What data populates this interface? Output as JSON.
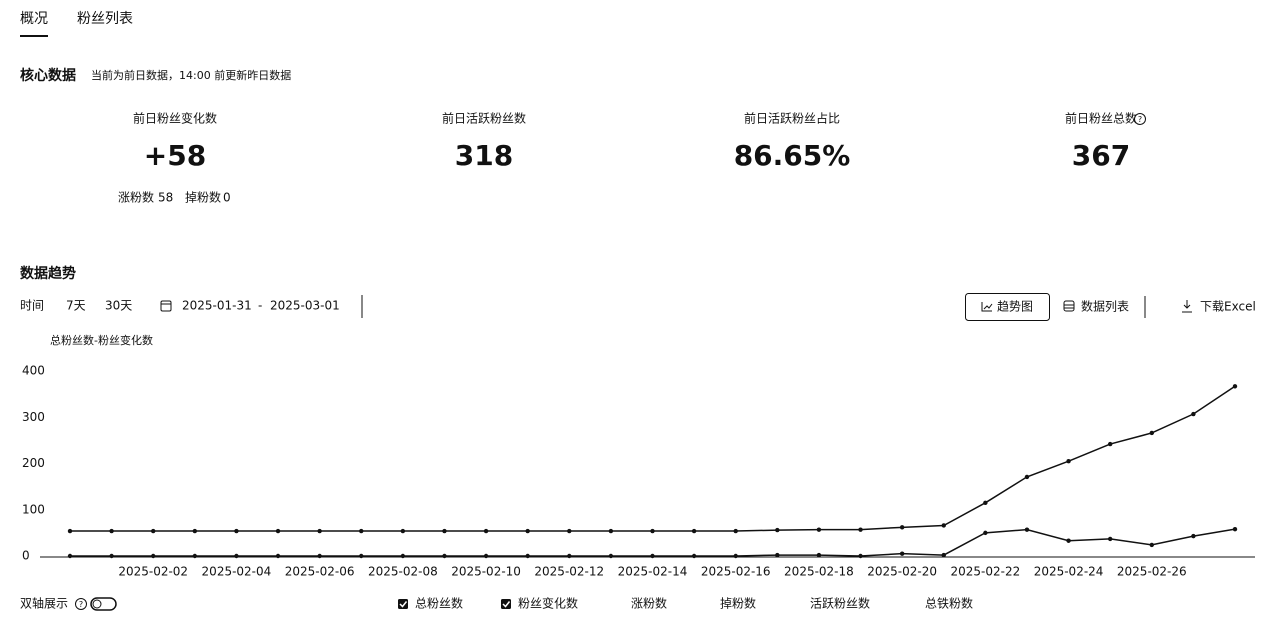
{
  "tabs": [
    "概况",
    "粉丝列表"
  ],
  "core": {
    "title": "核心数据",
    "note": "当前为前日数据，14:00 前更新昨日数据",
    "metrics": [
      {
        "label": "前日粉丝变化数",
        "value": {
          "value": 58,
          "label": "+58"
        }
      },
      {
        "label": "前日活跃粉丝数",
        "value": 318
      },
      {
        "label": "前日活跃粉丝占比",
        "value": {
          "value": 86.65,
          "label": "86.65%"
        }
      },
      {
        "label": "前日粉丝总数",
        "value": 367
      }
    ],
    "sub": [
      {
        "label": "涨粉数",
        "value": 58
      },
      {
        "label": "掉粉数",
        "value": 0
      }
    ]
  },
  "trend": {
    "title": "数据趋势",
    "time_label": "时间",
    "ranges": [
      "7天",
      "30天"
    ],
    "start": "2025-01-31",
    "separator": "-",
    "end": "2025-03-01",
    "views": [
      "趋势图",
      "数据列表"
    ],
    "download": "下载Excel",
    "dual_axis": "双轴展示",
    "other_options": [
      "涨粉数",
      "掉粉数",
      "活跃粉丝数",
      "总铁粉数"
    ]
  },
  "chart_data": {
    "type": "line",
    "y_label": "总粉丝数-粉丝变化数",
    "categories": [
      null,
      null,
      "2025-02-02",
      null,
      "2025-02-04",
      null,
      "2025-02-06",
      null,
      "2025-02-08",
      null,
      "2025-02-10",
      null,
      "2025-02-12",
      null,
      "2025-02-14",
      null,
      "2025-02-16",
      null,
      "2025-02-18",
      null,
      "2025-02-20",
      null,
      "2025-02-22",
      null,
      "2025-02-24",
      null,
      "2025-02-26",
      null,
      null
    ],
    "series": [
      {
        "name": "总粉丝数",
        "color": "#111111",
        "values": [
          54,
          54,
          54,
          54,
          54,
          54,
          54,
          54,
          54,
          54,
          54,
          54,
          54,
          54,
          54,
          54,
          54,
          56,
          57,
          57,
          62,
          66,
          115,
          171,
          205,
          242,
          266,
          307,
          367
        ]
      },
      {
        "name": "粉丝变化数",
        "color": "#111111",
        "values": [
          0,
          0,
          0,
          0,
          0,
          0,
          0,
          0,
          0,
          0,
          0,
          0,
          0,
          0,
          0,
          0,
          0,
          2,
          2,
          0,
          5,
          2,
          50,
          57,
          33,
          37,
          24,
          43,
          58
        ]
      }
    ],
    "ylim": [
      0,
      400
    ],
    "yticks": [
      0,
      100,
      200,
      300,
      400
    ],
    "grid": false
  }
}
